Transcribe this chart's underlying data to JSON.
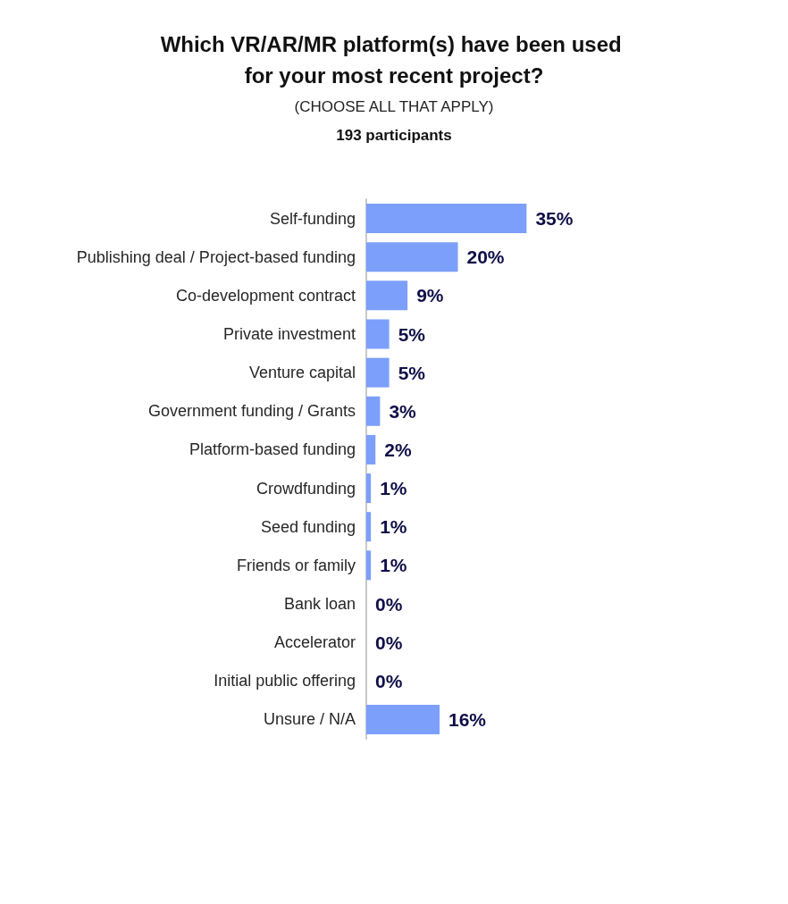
{
  "chart_data": {
    "type": "bar",
    "orientation": "horizontal",
    "title": "Which VR/AR/MR platform(s) have been used for your most recent project?",
    "subtitle": "(CHOOSE ALL THAT APPLY)",
    "annotations": [
      "193 participants"
    ],
    "categories": [
      "Self-funding",
      "Publishing deal / Project-based funding",
      "Co-development contract",
      "Private investment",
      "Venture capital",
      "Government funding / Grants",
      "Platform-based funding",
      "Crowdfunding",
      "Seed funding",
      "Friends or family",
      "Bank loan",
      "Accelerator",
      "Initial public offering",
      "Unsure / N/A"
    ],
    "values": [
      35,
      20,
      9,
      5,
      5,
      3,
      2,
      1,
      1,
      1,
      0,
      0,
      0,
      16
    ],
    "value_labels": [
      "35%",
      "20%",
      "9%",
      "5%",
      "5%",
      "3%",
      "2%",
      "1%",
      "1%",
      "1%",
      "0%",
      "0%",
      "0%",
      "16%"
    ],
    "color": "#7b9ffb"
  }
}
